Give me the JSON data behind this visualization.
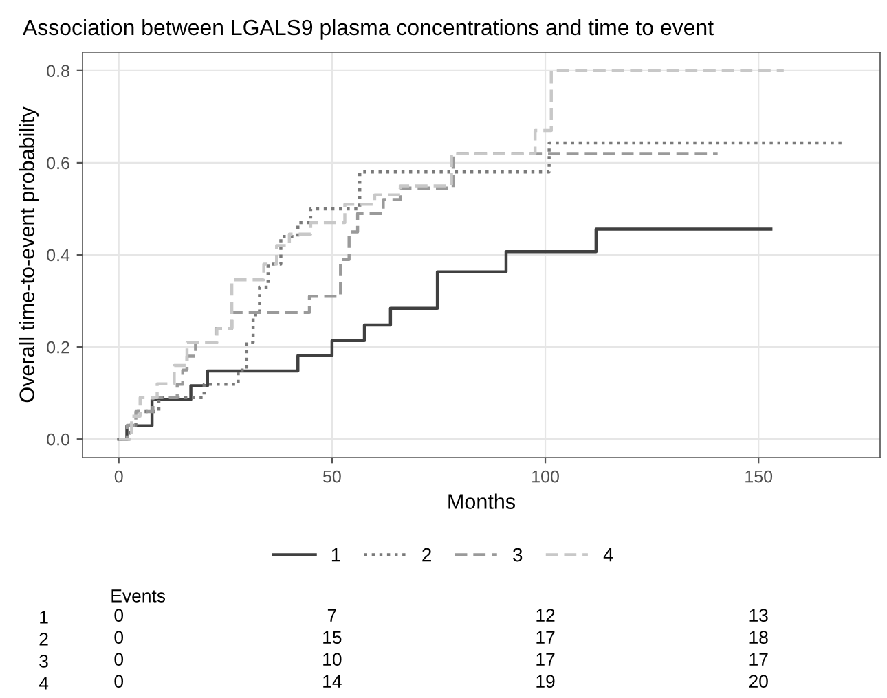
{
  "chart_data": [
    {
      "type": "step",
      "title": "Association between LGALS9 plasma concentrations and time to event",
      "xlabel": "Months",
      "ylabel": "Overall time-to-event probability",
      "xlim": [
        -8.5,
        178.5
      ],
      "xticks": [
        0,
        50,
        100,
        150
      ],
      "ylim": [
        -0.04,
        0.84
      ],
      "yticks": [
        {
          "value": 0,
          "label": "0.0"
        },
        0.2,
        0.4,
        0.6,
        0.8
      ],
      "grid": true,
      "legend": "bottom",
      "series": [
        {
          "name": "1",
          "color": "#404040",
          "line_style": "solid",
          "x": [
            0,
            1.9,
            7.8,
            16.9,
            20.8,
            42,
            50,
            57.6,
            63.7,
            74.7,
            90.8,
            111.9,
            152.9
          ],
          "values": [
            0,
            0.029,
            0.086,
            0.116,
            0.148,
            0.181,
            0.214,
            0.248,
            0.284,
            0.363,
            0.407,
            0.456,
            0.456
          ]
        },
        {
          "name": "2",
          "color": "#7a7a7a",
          "line_style": "dotted",
          "x": [
            0,
            2.5,
            4,
            9.4,
            20,
            28,
            30,
            31.5,
            33,
            35,
            38,
            42,
            45,
            56.5,
            100.9,
            170.3
          ],
          "values": [
            0,
            0.03,
            0.06,
            0.09,
            0.119,
            0.15,
            0.21,
            0.27,
            0.33,
            0.38,
            0.44,
            0.47,
            0.5,
            0.58,
            0.643,
            0.643
          ]
        },
        {
          "name": "3",
          "color": "#9a9a9a",
          "line_style": "dashed",
          "x": [
            0,
            2,
            4,
            8,
            13.7,
            15,
            16,
            18,
            22.8,
            26.5,
            44.7,
            52,
            54,
            56,
            62,
            66,
            78.4,
            140.4
          ],
          "values": [
            0,
            0.03,
            0.06,
            0.09,
            0.119,
            0.15,
            0.18,
            0.21,
            0.24,
            0.275,
            0.31,
            0.39,
            0.45,
            0.49,
            0.52,
            0.545,
            0.62,
            0.62
          ]
        },
        {
          "name": "4",
          "color": "#c8c8c8",
          "line_style": "dashed",
          "x": [
            0,
            3,
            5,
            9,
            13,
            16,
            23,
            26.5,
            34,
            37,
            40,
            45,
            53,
            60,
            66,
            78,
            97.6,
            101.4,
            155.9
          ],
          "values": [
            0,
            0.05,
            0.09,
            0.12,
            0.16,
            0.21,
            0.24,
            0.346,
            0.38,
            0.42,
            0.445,
            0.47,
            0.51,
            0.53,
            0.55,
            0.62,
            0.67,
            0.8,
            0.8
          ]
        }
      ]
    },
    {
      "type": "heatmap",
      "title": "Events",
      "categories": [
        null,
        null,
        null,
        null
      ],
      "y_categories": [
        "1",
        "2",
        "3",
        "4"
      ],
      "data_labels": true,
      "cells": [
        [
          0,
          7,
          12,
          13
        ],
        [
          0,
          15,
          17,
          18
        ],
        [
          0,
          10,
          17,
          17
        ],
        [
          0,
          14,
          19,
          20
        ]
      ]
    }
  ]
}
